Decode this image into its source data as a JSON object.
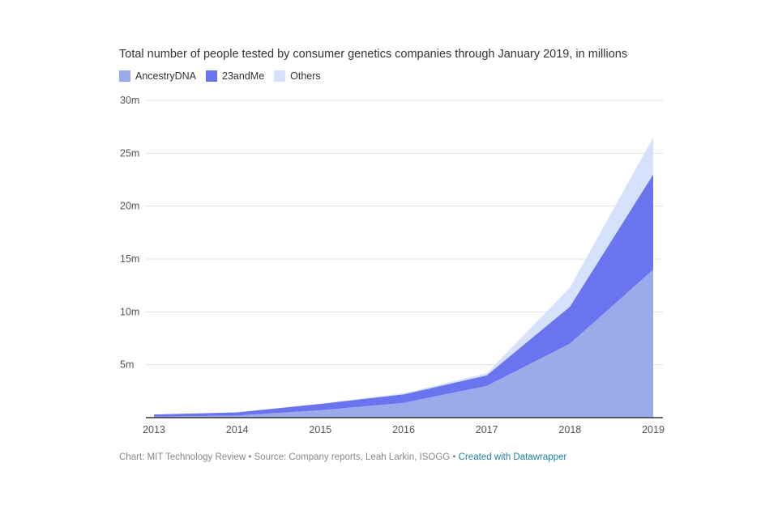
{
  "chart_data": {
    "type": "area",
    "stacked": true,
    "title": "Total number of people tested by consumer genetics companies through January 2019, in millions",
    "x": [
      "2013",
      "2014",
      "2015",
      "2016",
      "2017",
      "2018",
      "2019"
    ],
    "series": [
      {
        "name": "AncestryDNA",
        "color": "#9aaaea",
        "values": [
          0.1,
          0.2,
          0.7,
          1.4,
          3.0,
          7.0,
          14.0
        ]
      },
      {
        "name": "23andMe",
        "color": "#6b74ef",
        "values": [
          0.2,
          0.3,
          0.6,
          0.8,
          1.0,
          3.5,
          9.0
        ]
      },
      {
        "name": "Others",
        "color": "#d6e1fb",
        "values": [
          0.0,
          0.0,
          0.0,
          0.1,
          0.2,
          1.8,
          3.5
        ]
      }
    ],
    "yticks": [
      "30m",
      "25m",
      "20m",
      "15m",
      "10m",
      "5m"
    ],
    "ytick_values": [
      30,
      25,
      20,
      15,
      10,
      5
    ],
    "ylim": [
      0,
      30
    ],
    "grid": true,
    "legend_position": "top-left"
  },
  "footer": {
    "chart_by": "Chart: MIT Technology Review",
    "separator": "•",
    "source": "Source: Company reports, Leah Larkin, ISOGG",
    "credit": "Created with Datawrapper"
  }
}
